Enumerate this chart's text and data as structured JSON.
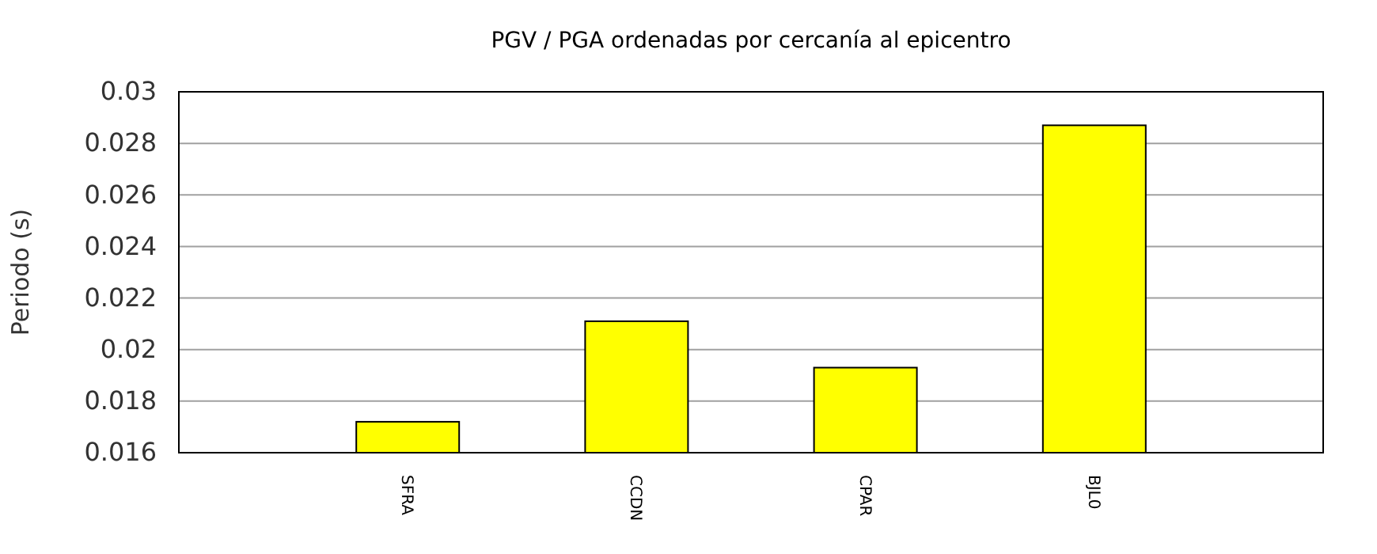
{
  "chart_data": {
    "type": "bar",
    "title": "PGV / PGA ordenadas por cercanía al epicentro",
    "ylabel": "Periodo (s)",
    "categories": [
      null,
      "SFRA",
      "CCDN",
      "CPAR",
      "BJL0",
      null
    ],
    "values": [
      null,
      0.0172,
      0.0211,
      0.0193,
      0.0287,
      null
    ],
    "color": "#ffff00",
    "ylim": [
      0.016,
      0.03
    ],
    "yticks": [
      0.016,
      0.018,
      0.02,
      0.022,
      0.024,
      0.026,
      0.028,
      0.03
    ],
    "grid": "y"
  }
}
